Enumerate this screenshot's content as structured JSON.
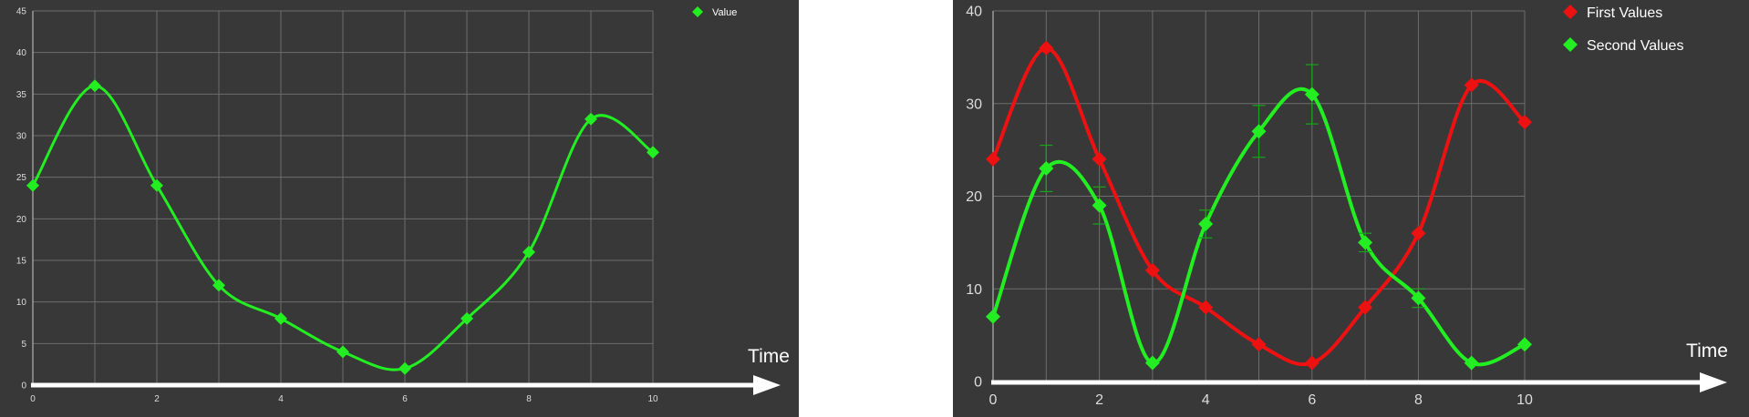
{
  "chart_data": [
    {
      "type": "line",
      "smooth": true,
      "categories": [
        0,
        1,
        2,
        3,
        4,
        5,
        6,
        7,
        8,
        9,
        10
      ],
      "x_tick_labels": [
        "0",
        "2",
        "4",
        "6",
        "8",
        "10"
      ],
      "y_tick_labels": [
        "0",
        "5",
        "10",
        "15",
        "20",
        "25",
        "30",
        "35",
        "40",
        "45"
      ],
      "xlim": [
        0,
        10
      ],
      "ylim": [
        0,
        45
      ],
      "grid": true,
      "legend": "top-right",
      "xlabel": "Time",
      "series": [
        {
          "name": "Value",
          "color": "#22ee22",
          "marker": "diamond",
          "values": [
            24,
            36,
            24,
            12,
            8,
            4,
            2,
            8,
            16,
            32,
            28
          ]
        }
      ]
    },
    {
      "type": "line",
      "smooth": true,
      "categories": [
        0,
        1,
        2,
        3,
        4,
        5,
        6,
        7,
        8,
        9,
        10
      ],
      "x_tick_labels": [
        "0",
        "2",
        "4",
        "6",
        "8",
        "10"
      ],
      "y_tick_labels": [
        "0",
        "10",
        "20",
        "30",
        "40"
      ],
      "xlim": [
        0,
        10
      ],
      "ylim": [
        0,
        40
      ],
      "grid": true,
      "legend": "top-right",
      "xlabel": "Time",
      "series": [
        {
          "name": "First Values",
          "color": "#ee1111",
          "marker": "diamond",
          "values": [
            24,
            36,
            24,
            12,
            8,
            4,
            2,
            8,
            16,
            32,
            28
          ]
        },
        {
          "name": "Second Values",
          "color": "#22ee22",
          "marker": "diamond",
          "values": [
            7,
            23,
            19,
            2,
            17,
            27,
            31,
            15,
            9,
            2,
            4
          ],
          "error_bars": [
            0,
            2.5,
            2,
            0,
            1.5,
            2.8,
            3.2,
            1,
            1,
            0,
            0
          ]
        }
      ]
    }
  ]
}
